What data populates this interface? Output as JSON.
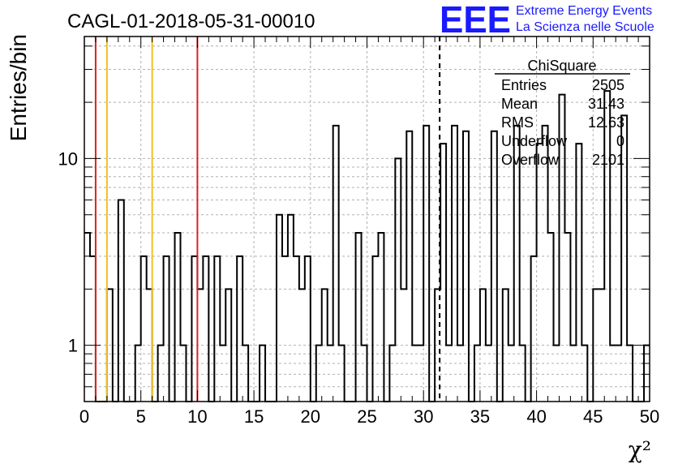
{
  "header": {
    "title": "CAGL-01-2018-05-31-00010",
    "logo_text": "EEE",
    "logo_line1": "Extreme Energy Events",
    "logo_line2": "La Scienza nelle Scuole"
  },
  "stats": {
    "name": "ChiSquare",
    "rows": [
      {
        "label": "Entries",
        "value": "2505"
      },
      {
        "label": "Mean",
        "value": "31.43"
      },
      {
        "label": "RMS",
        "value": "12.63"
      },
      {
        "label": "Underflow",
        "value": "0"
      },
      {
        "label": "Overflow",
        "value": "2101"
      }
    ]
  },
  "colors": {
    "red_line": "#dd2222",
    "yellow_line": "#f0c020",
    "grid": "#b0b0b0",
    "logo": "#1a1aff"
  },
  "chart_data": {
    "type": "histogram",
    "title": "CAGL-01-2018-05-31-00010",
    "xlabel": "χ²",
    "ylabel": "Entries/bin",
    "xlim": [
      0,
      50
    ],
    "ylim": [
      0.5,
      45
    ],
    "log_y": true,
    "grid": true,
    "bin_width": 0.5,
    "x_ticks": [
      "0",
      "5",
      "10",
      "15",
      "20",
      "25",
      "30",
      "35",
      "40",
      "45",
      "50"
    ],
    "y_ticks": [
      {
        "value": 1,
        "label": "1"
      },
      {
        "value": 10,
        "label": "10"
      }
    ],
    "values": [
      4,
      3,
      0,
      0,
      2,
      0,
      6,
      0,
      0,
      1,
      3,
      2,
      0,
      1,
      3,
      0,
      4,
      1,
      0,
      3,
      2,
      3,
      0,
      3,
      1,
      2,
      0,
      3,
      1,
      0,
      0,
      1,
      0,
      0,
      5,
      3,
      5,
      3,
      2,
      3,
      0,
      1,
      2,
      1,
      15,
      1,
      0,
      0,
      4,
      1,
      0,
      3,
      4,
      0,
      1,
      10,
      2,
      14,
      1,
      1,
      15,
      0,
      2,
      12,
      1,
      15,
      1,
      14,
      0,
      1,
      2,
      1,
      14,
      0,
      2,
      1,
      15,
      1,
      0,
      3,
      12,
      15,
      4,
      1,
      22,
      4,
      1,
      12,
      1,
      0,
      2,
      2,
      23,
      1,
      1,
      17,
      1,
      0,
      0,
      1
    ],
    "vertical_lines": [
      {
        "x": 1,
        "color": "red",
        "style": "solid"
      },
      {
        "x": 2,
        "color": "yellow",
        "style": "solid"
      },
      {
        "x": 6,
        "color": "yellow",
        "style": "solid"
      },
      {
        "x": 10,
        "color": "red",
        "style": "solid"
      },
      {
        "x": 31.43,
        "color": "black",
        "style": "dashed"
      }
    ]
  }
}
